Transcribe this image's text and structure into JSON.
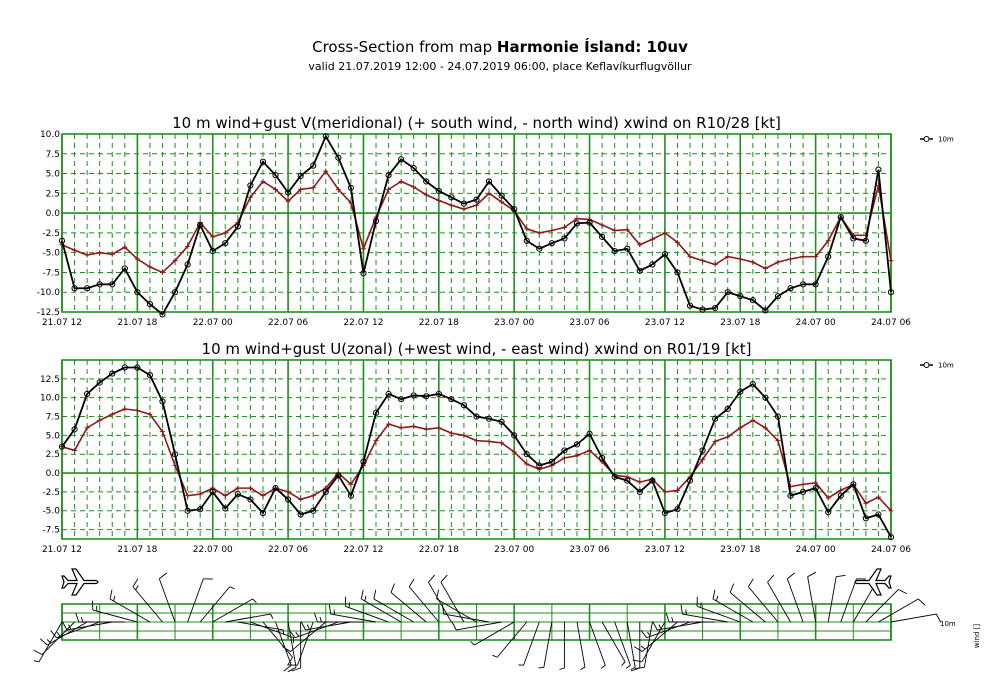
{
  "header": {
    "title_prefix": "Cross-Section from map ",
    "title_bold": "Harmonie Ísland: 10uv",
    "subtitle": "valid 21.07.2019 12:00 - 24.07.2019 06:00, place Keflavíkurflugvöllur"
  },
  "colors": {
    "grid": "#1f8f1f",
    "main": "#000000",
    "gust": "#8b1a1a",
    "barb": "#000000"
  },
  "icons": [
    "airplane-icon-left",
    "airplane-icon-right"
  ],
  "wind_panel": {
    "legend_top": "10m",
    "legend_side": "wind []"
  },
  "chart_data": [
    {
      "type": "line",
      "title": "10 m wind+gust V(meridional) (+ south wind, - north wind) xwind on R10/28 [kt]",
      "x_tick_labels": [
        "21.07 12",
        "21.07 18",
        "22.07 00",
        "22.07 06",
        "22.07 12",
        "22.07 18",
        "23.07 00",
        "23.07 06",
        "23.07 12",
        "23.07 18",
        "24.07 00",
        "24.07 06"
      ],
      "xlim": [
        0,
        66
      ],
      "ylim": [
        -12.5,
        10.0
      ],
      "y_ticks": [
        "10.0",
        "7.5",
        "5.0",
        "2.5",
        "0.0",
        "-2.5",
        "-5.0",
        "-7.5",
        "-10.0",
        "-12.5"
      ],
      "grid": true,
      "legend": "top-right",
      "series": [
        {
          "name": "10m",
          "marker": "circle",
          "color": "#000000",
          "values": [
            -3.5,
            -9.5,
            -9.5,
            -9,
            -9,
            -7,
            -10,
            -11.5,
            -12.8,
            -10,
            -6.5,
            -1.5,
            -4.8,
            -3.8,
            -1.7,
            3.5,
            6.5,
            4.8,
            2.6,
            4.7,
            6,
            9.7,
            7,
            3.2,
            -7.6,
            -1,
            4.8,
            6.8,
            5.7,
            4,
            2.8,
            2,
            1.2,
            1.7,
            4,
            2.2,
            0.5,
            -3.5,
            -4.5,
            -3.8,
            -3.2,
            -1.3,
            -1.2,
            -3,
            -4.8,
            -4.5,
            -7.3,
            -6.5,
            -5.2,
            -7.5,
            -11.7,
            -12.2,
            -12,
            -10,
            -10.5,
            -11,
            -12.3,
            -10.5,
            -9.5,
            -9,
            -9,
            -5.5,
            -0.5,
            -3.2,
            -3.5,
            5.5,
            -10
          ]
        },
        {
          "name": "",
          "marker": "plus",
          "color": "#8b1a1a",
          "values": [
            -4,
            -4.7,
            -5.3,
            -5,
            -5.2,
            -4.3,
            -5.8,
            -6.8,
            -7.5,
            -6,
            -4.2,
            -1.2,
            -3,
            -2.5,
            -1.2,
            2,
            4,
            3,
            1.5,
            3,
            3.2,
            5.3,
            3,
            1.3,
            -4.5,
            -0.5,
            3,
            4,
            3.3,
            2.3,
            1.6,
            1,
            0.5,
            1,
            2.5,
            1.4,
            0.3,
            -2,
            -2.5,
            -2.2,
            -1.8,
            -0.7,
            -0.8,
            -1.5,
            -2.2,
            -2.1,
            -4,
            -3.3,
            -2.5,
            -3.7,
            -5.5,
            -6,
            -6.5,
            -5.5,
            -5.8,
            -6.2,
            -7,
            -6.2,
            -5.8,
            -5.5,
            -5.5,
            -3.5,
            -0.5,
            -2.8,
            -2.8,
            3.5,
            -6
          ]
        }
      ]
    },
    {
      "type": "line",
      "title": "10 m wind+gust U(zonal) (+west wind, - east wind) xwind on R01/19 [kt]",
      "x_tick_labels": [
        "21.07 12",
        "21.07 18",
        "22.07 00",
        "22.07 06",
        "22.07 12",
        "22.07 18",
        "23.07 00",
        "23.07 06",
        "23.07 12",
        "23.07 18",
        "24.07 00",
        "24.07 06"
      ],
      "xlim": [
        0,
        66
      ],
      "ylim": [
        -8.75,
        15
      ],
      "y_ticks": [
        "12.5",
        "10.0",
        "7.5",
        "5.0",
        "2.5",
        "0.0",
        "-2.5",
        "-5.0",
        "-7.5"
      ],
      "grid": true,
      "legend": "top-right",
      "series": [
        {
          "name": "10m",
          "marker": "circle",
          "color": "#000000",
          "values": [
            3.5,
            5.8,
            10.5,
            12,
            13.2,
            14,
            14,
            13,
            9.5,
            2.5,
            -5,
            -4.8,
            -2.5,
            -4.7,
            -2.8,
            -3.5,
            -5.3,
            -2,
            -3.5,
            -5.5,
            -5,
            -2.5,
            -0.3,
            -3,
            1.5,
            8,
            10.5,
            9.8,
            10.3,
            10.2,
            10.5,
            9.8,
            9,
            7.5,
            7.2,
            6.8,
            5,
            2.5,
            1,
            1.5,
            3,
            3.8,
            5.2,
            2,
            -0.5,
            -1,
            -2.5,
            -1,
            -5.3,
            -4.8,
            -1,
            3,
            7.2,
            8.5,
            10.8,
            11.8,
            10,
            7.5,
            -3,
            -2.5,
            -2,
            -5.2,
            -3,
            -1.5,
            -6,
            -5.5,
            -8.5
          ]
        },
        {
          "name": "",
          "marker": "plus",
          "color": "#8b1a1a",
          "values": [
            3.5,
            3,
            6,
            7,
            7.8,
            8.5,
            8.3,
            7.8,
            5.5,
            1,
            -3,
            -2.8,
            -2,
            -3,
            -2,
            -2,
            -3,
            -2,
            -2.5,
            -3.5,
            -3,
            -2,
            0,
            -1.5,
            1,
            4.3,
            6.5,
            6,
            6.2,
            5.8,
            6,
            5.3,
            5,
            4.3,
            4.2,
            4,
            2.8,
            1.2,
            0.5,
            1,
            2,
            2.3,
            3,
            1.5,
            -0.3,
            -0.5,
            -1.2,
            -0.8,
            -2.5,
            -2.3,
            -0.5,
            1.8,
            4.2,
            4.8,
            6,
            7,
            6,
            4.3,
            -1.8,
            -1.5,
            -1.3,
            -3.3,
            -2.3,
            -1.5,
            -4,
            -3.2,
            -5
          ]
        }
      ]
    },
    {
      "type": "wind barbs",
      "title": "",
      "x_tick_labels": [
        "21.07 12",
        "21.07 18",
        "22.07 00",
        "22.07 06",
        "22.07 12",
        "22.07 18",
        "23.07 00",
        "23.07 06",
        "23.07 12",
        "23.07 18",
        "24.07 00",
        "24.07 06"
      ],
      "direction_deg": [
        210,
        225,
        240,
        250,
        260,
        270,
        285,
        300,
        320,
        340,
        20,
        40,
        60,
        80,
        100,
        110,
        140,
        160,
        170,
        180,
        200,
        230,
        250,
        260,
        270,
        280,
        290,
        300,
        300,
        310,
        320,
        330,
        330,
        300,
        280,
        260,
        240,
        220,
        200,
        190,
        180,
        170,
        160,
        150,
        160,
        170,
        180,
        190,
        210,
        230,
        250,
        260,
        270,
        280,
        290,
        300,
        310,
        320,
        330,
        340,
        350,
        10,
        20,
        30,
        45,
        60,
        80
      ],
      "speed_kt": [
        5,
        10,
        15,
        15,
        15,
        15,
        15,
        15,
        15,
        10,
        10,
        5,
        5,
        5,
        5,
        5,
        10,
        10,
        10,
        10,
        10,
        10,
        15,
        15,
        15,
        15,
        15,
        15,
        10,
        10,
        10,
        10,
        10,
        10,
        10,
        10,
        5,
        5,
        5,
        5,
        5,
        5,
        5,
        5,
        5,
        5,
        10,
        10,
        10,
        15,
        15,
        15,
        15,
        15,
        15,
        15,
        10,
        10,
        10,
        10,
        10,
        10,
        10,
        10,
        10,
        10,
        10
      ]
    }
  ]
}
